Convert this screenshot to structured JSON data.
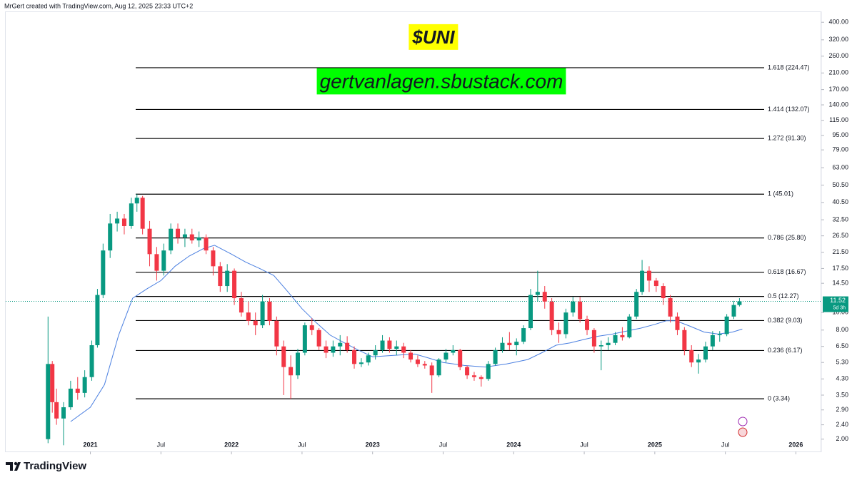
{
  "chart_data": {
    "type": "candlestick",
    "header": "MrGert created with TradingView.com, Aug 12, 2025 23:33 UTC+2",
    "title": "$UNI",
    "subtitle": "gertvanlagen.sbustack.com",
    "brand": "TradingView",
    "log_y": true,
    "up_color": "#089981",
    "down_color": "#f23645",
    "x": [
      2020.7,
      2020.73,
      2020.76,
      2020.81,
      2020.86,
      2020.91,
      2020.96,
      2021.01,
      2021.05,
      2021.09,
      2021.14,
      2021.19,
      2021.24,
      2021.29,
      2021.33,
      2021.37,
      2021.42,
      2021.47,
      2021.52,
      2021.57,
      2021.62,
      2021.67,
      2021.72,
      2021.77,
      2021.82,
      2021.87,
      2021.92,
      2021.97,
      2022.02,
      2022.07,
      2022.12,
      2022.17,
      2022.22,
      2022.27,
      2022.32,
      2022.37,
      2022.42,
      2022.47,
      2022.52,
      2022.57,
      2022.62,
      2022.67,
      2022.72,
      2022.77,
      2022.82,
      2022.87,
      2022.92,
      2022.97,
      2023.02,
      2023.07,
      2023.12,
      2023.17,
      2023.22,
      2023.27,
      2023.32,
      2023.37,
      2023.42,
      2023.47,
      2023.52,
      2023.57,
      2023.62,
      2023.67,
      2023.72,
      2023.77,
      2023.82,
      2023.87,
      2023.92,
      2023.97,
      2024.02,
      2024.07,
      2024.12,
      2024.17,
      2024.22,
      2024.27,
      2024.32,
      2024.37,
      2024.42,
      2024.47,
      2024.52,
      2024.57,
      2024.62,
      2024.67,
      2024.72,
      2024.77,
      2024.82,
      2024.87,
      2024.91,
      2024.96,
      2025.01,
      2025.06,
      2025.11,
      2025.16,
      2025.21,
      2025.26,
      2025.31,
      2025.36,
      2025.41,
      2025.46,
      2025.51,
      2025.56,
      2025.6
    ],
    "open": [
      2.0,
      5.2,
      3.2,
      2.6,
      3.0,
      3.8,
      3.6,
      4.4,
      6.6,
      12.5,
      22,
      31,
      33,
      30,
      40,
      43,
      29,
      21,
      17,
      22,
      29,
      26,
      27,
      25,
      26,
      22,
      18,
      14,
      17,
      12,
      10,
      9,
      8.5,
      11.5,
      9,
      6.5,
      5,
      4.5,
      6,
      8.5,
      8,
      6.5,
      6,
      6.5,
      6.8,
      6.2,
      5.2,
      5.3,
      5.8,
      6.2,
      7,
      6.3,
      6.5,
      6,
      5.5,
      5.2,
      5.1,
      4.5,
      5.5,
      6,
      6.2,
      5,
      4.5,
      4.4,
      4.3,
      5.2,
      6.2,
      6.8,
      6.6,
      6.9,
      8.2,
      12.5,
      13,
      11.5,
      8,
      7.6,
      10,
      11.5,
      9.2,
      8,
      6.5,
      6.6,
      6.8,
      7.5,
      7.3,
      9.5,
      13,
      17,
      15,
      14,
      12,
      9.5,
      8,
      6.2,
      5.3,
      5.5,
      6.5,
      7.5,
      7.6,
      9.5,
      11
    ],
    "high": [
      9.5,
      5.4,
      3.8,
      3.2,
      4.2,
      4.4,
      4.8,
      7.0,
      13.5,
      24,
      35,
      36,
      35,
      43,
      45,
      44,
      32,
      23,
      24,
      31,
      31,
      29,
      29,
      28,
      27,
      23,
      19,
      18.5,
      17.5,
      13,
      11.5,
      10,
      12.5,
      12,
      9.5,
      7,
      5.8,
      6.3,
      8.8,
      9.3,
      8.2,
      7,
      7,
      7.5,
      7.4,
      6.5,
      5.6,
      6,
      6.6,
      7.5,
      7.3,
      7,
      6.8,
      6.2,
      5.8,
      5.4,
      5.3,
      5.6,
      6.3,
      6.6,
      6.3,
      5.1,
      4.7,
      4.5,
      5.4,
      6.4,
      7.3,
      7.8,
      7.2,
      8.5,
      13.5,
      17,
      14,
      12,
      8.8,
      10.5,
      12.2,
      12.2,
      9.6,
      8.2,
      7,
      7.3,
      7.8,
      8.3,
      9.8,
      13.5,
      19.5,
      18,
      15.5,
      14.5,
      12.5,
      10,
      8.3,
      6.6,
      5.9,
      6.9,
      7.9,
      7.9,
      9.8,
      11.6,
      12
    ],
    "low": [
      1.9,
      2.8,
      2.4,
      1.85,
      2.9,
      3.3,
      3.4,
      4.2,
      6.4,
      12,
      20,
      28,
      27,
      29,
      36,
      27,
      18,
      15,
      16,
      21,
      24,
      23,
      24,
      23,
      21,
      16,
      13,
      13,
      11,
      9.5,
      8.5,
      7.5,
      8.2,
      8.5,
      5.8,
      3.5,
      3.34,
      4.3,
      5.8,
      7.5,
      6.2,
      5.6,
      5.7,
      5.8,
      6,
      4.9,
      5,
      5.1,
      5.5,
      6,
      6,
      5.8,
      5.6,
      5.3,
      5,
      4.9,
      3.6,
      4.4,
      5.3,
      5.8,
      4.8,
      4.3,
      4.2,
      3.9,
      4.2,
      5.1,
      6,
      6.2,
      5.8,
      6.7,
      8,
      11.5,
      10.5,
      7.5,
      6.8,
      7.2,
      9.5,
      8.8,
      7.5,
      6,
      4.8,
      6.2,
      6.6,
      7,
      7.2,
      9.2,
      12.5,
      13,
      13,
      11,
      8.8,
      7.5,
      5.8,
      5,
      4.6,
      5.3,
      6.2,
      6.9,
      7.4,
      9.2,
      10.8
    ],
    "close": [
      5.2,
      3.2,
      2.6,
      3.0,
      3.8,
      3.6,
      4.4,
      6.6,
      12.5,
      22,
      31,
      33,
      30,
      40,
      43,
      29,
      21,
      17,
      22,
      29,
      26,
      27,
      25,
      26,
      22,
      18,
      14,
      17,
      12,
      10,
      9,
      8.5,
      11.5,
      9,
      6.5,
      5,
      4.5,
      6,
      8.5,
      8,
      6.5,
      6,
      6.5,
      6.8,
      6.2,
      5.2,
      5.3,
      5.8,
      6.2,
      7,
      6.3,
      6.5,
      6,
      5.5,
      5.2,
      5.1,
      4.5,
      5.5,
      6,
      6.2,
      5,
      4.5,
      4.4,
      4.3,
      5.2,
      6.2,
      6.8,
      6.6,
      6.9,
      8.2,
      12.5,
      13,
      11.5,
      8,
      7.6,
      10,
      11.5,
      9.2,
      8,
      6.5,
      6.6,
      6.8,
      7.5,
      7.3,
      9.5,
      13,
      17,
      15,
      14,
      12,
      9.5,
      8,
      6.2,
      5.3,
      5.5,
      6.5,
      7.5,
      7.6,
      9.5,
      11,
      11.52
    ],
    "ma": {
      "color": "#4a7fe0",
      "x": [
        2020.86,
        2021.0,
        2021.1,
        2021.2,
        2021.3,
        2021.4,
        2021.5,
        2021.6,
        2021.7,
        2021.8,
        2021.88,
        2022.0,
        2022.1,
        2022.2,
        2022.3,
        2022.4,
        2022.5,
        2022.6,
        2022.7,
        2022.8,
        2022.9,
        2023.0,
        2023.15,
        2023.3,
        2023.4,
        2023.5,
        2023.65,
        2023.8,
        2023.95,
        2024.1,
        2024.2,
        2024.3,
        2024.4,
        2024.5,
        2024.6,
        2024.7,
        2024.8,
        2024.9,
        2025.0,
        2025.08,
        2025.15,
        2025.25,
        2025.35,
        2025.45,
        2025.55,
        2025.62
      ],
      "values": [
        2.5,
        3.0,
        4.0,
        7.5,
        12,
        13.5,
        15,
        18,
        20.5,
        22.5,
        23.5,
        21,
        19,
        17.5,
        16,
        13,
        10.5,
        8.8,
        7.5,
        6.8,
        6.2,
        5.7,
        5.8,
        5.9,
        5.6,
        5.3,
        5.1,
        5.0,
        5.2,
        5.5,
        6.0,
        6.6,
        6.8,
        7.1,
        7.4,
        7.6,
        7.9,
        8.2,
        8.6,
        9.0,
        9.0,
        8.4,
        7.8,
        7.6,
        7.8,
        8.1
      ]
    },
    "fib": [
      {
        "value": 224.47,
        "label": "1.618 (224.47)"
      },
      {
        "value": 132.07,
        "label": "1.414 (132.07)"
      },
      {
        "value": 91.3,
        "label": "1.272 (91.30)"
      },
      {
        "value": 45.01,
        "label": "1 (45.01)"
      },
      {
        "value": 25.8,
        "label": "0.786 (25.80)"
      },
      {
        "value": 16.67,
        "label": "0.618 (16.67)"
      },
      {
        "value": 12.27,
        "label": "0.5 (12.27)"
      },
      {
        "value": 9.03,
        "label": "0.382 (9.03)"
      },
      {
        "value": 6.17,
        "label": "0.236 (6.17)"
      },
      {
        "value": 3.34,
        "label": "0 (3.34)"
      }
    ],
    "last_price": 11.52,
    "countdown": "5d 3h",
    "xlim": [
      2020.4,
      2026.18
    ],
    "xticks": [
      2021,
      {
        "value": 2021.5,
        "label": "Jul"
      },
      2022,
      {
        "value": 2022.5,
        "label": "Jul"
      },
      2023,
      {
        "value": 2023.5,
        "label": "Jul"
      },
      2024,
      {
        "value": 2024.5,
        "label": "Jul"
      },
      2025,
      {
        "value": 2025.5,
        "label": "Jul"
      },
      2026
    ],
    "ylim": [
      1.71,
      455
    ],
    "yticks": [
      {
        "value": 400,
        "label": "400.00"
      },
      {
        "value": 320,
        "label": "320.00"
      },
      {
        "value": 260,
        "label": "260.00"
      },
      {
        "value": 210,
        "label": "210.00"
      },
      {
        "value": 170,
        "label": "170.00"
      },
      {
        "value": 140,
        "label": "140.00"
      },
      {
        "value": 115,
        "label": "115.00"
      },
      {
        "value": 95,
        "label": "95.00"
      },
      {
        "value": 79,
        "label": "79.00"
      },
      {
        "value": 63,
        "label": "63.00"
      },
      {
        "value": 50.5,
        "label": "50.50"
      },
      {
        "value": 40.5,
        "label": "40.50"
      },
      {
        "value": 32.5,
        "label": "32.50"
      },
      {
        "value": 26.5,
        "label": "26.50"
      },
      {
        "value": 21.5,
        "label": "21.50"
      },
      {
        "value": 17.5,
        "label": "17.50"
      },
      {
        "value": 14.5,
        "label": "14.50"
      },
      {
        "value": 10,
        "label": "10.00"
      },
      {
        "value": 8,
        "label": "8.00"
      },
      {
        "value": 6.5,
        "label": "6.50"
      },
      {
        "value": 5.3,
        "label": "5.30"
      },
      {
        "value": 4.3,
        "label": "4.30"
      },
      {
        "value": 3.5,
        "label": "3.50"
      },
      {
        "value": 2.9,
        "label": "2.90"
      },
      {
        "value": 2.4,
        "label": "2.40"
      },
      {
        "value": 2,
        "label": "2.00"
      }
    ]
  }
}
